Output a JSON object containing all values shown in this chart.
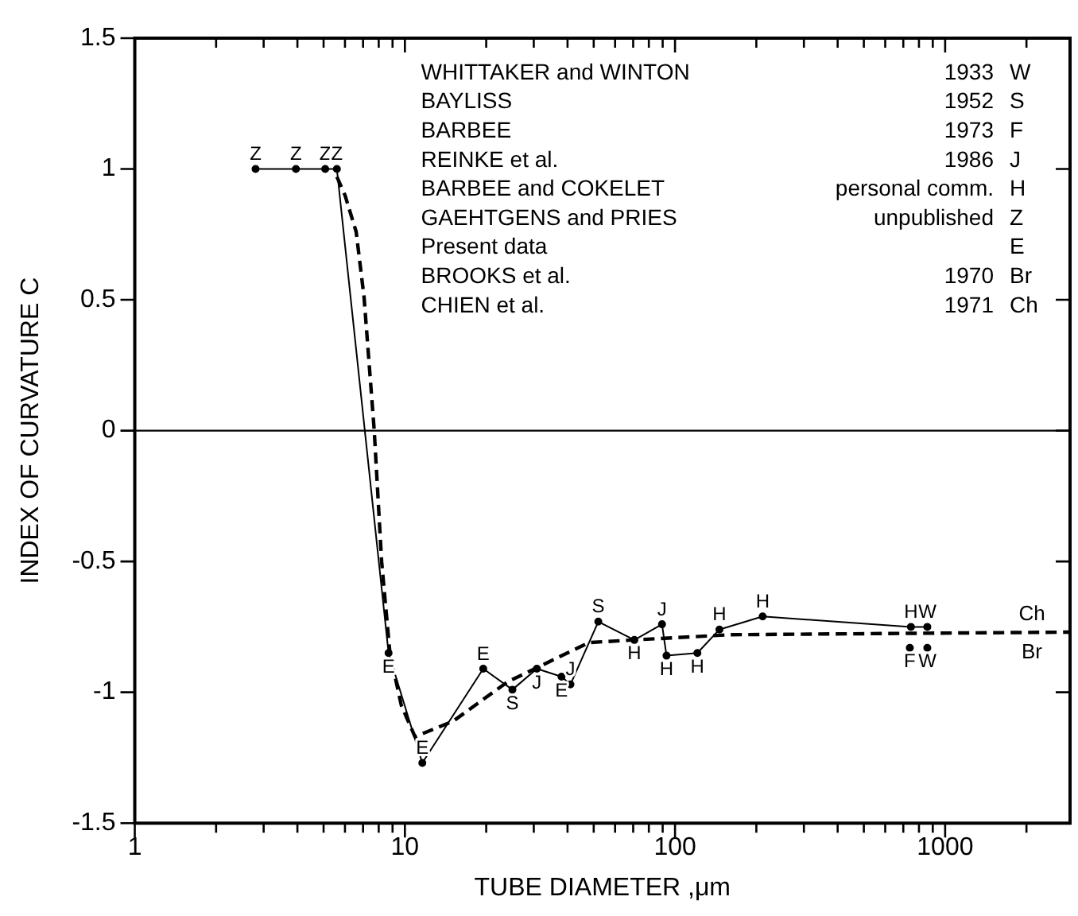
{
  "chart_data": {
    "type": "line",
    "xlabel": "TUBE DIAMETER ,μm",
    "ylabel": "INDEX OF CURVATURE C",
    "log": "x",
    "grid": false,
    "legend": false,
    "marker": "circle",
    "xlim": [
      1,
      2900
    ],
    "ylim": [
      -1.5,
      1.5
    ],
    "xticks": [
      1,
      {
        "value": 2,
        "label": null
      },
      {
        "value": 3,
        "label": null
      },
      {
        "value": 4,
        "label": null
      },
      {
        "value": 5,
        "label": null
      },
      {
        "value": 6,
        "label": null
      },
      {
        "value": 7,
        "label": null
      },
      {
        "value": 8,
        "label": null
      },
      {
        "value": 9,
        "label": null
      },
      10,
      {
        "value": 20,
        "label": null
      },
      {
        "value": 30,
        "label": null
      },
      {
        "value": 40,
        "label": null
      },
      {
        "value": 50,
        "label": null
      },
      {
        "value": 60,
        "label": null
      },
      {
        "value": 70,
        "label": null
      },
      {
        "value": 80,
        "label": null
      },
      {
        "value": 90,
        "label": null
      },
      100,
      {
        "value": 200,
        "label": null
      },
      {
        "value": 300,
        "label": null
      },
      {
        "value": 400,
        "label": null
      },
      {
        "value": 500,
        "label": null
      },
      {
        "value": 600,
        "label": null
      },
      {
        "value": 700,
        "label": null
      },
      {
        "value": 800,
        "label": null
      },
      {
        "value": 900,
        "label": null
      },
      1000,
      {
        "value": 2000,
        "label": null
      }
    ],
    "yticks": [
      -1.5,
      -1,
      -0.5,
      0,
      0.5,
      1,
      1.5
    ],
    "ref_lines": [
      {
        "axis": "y",
        "value": 0,
        "color": "#000000",
        "line_style": "solid"
      }
    ],
    "annotations": [
      "WHITTAKER and WINTON\t1933\tW",
      "BAYLISS\t1952\tS",
      "BARBEE\t1973\tF",
      "REINKE et al.\t1986\tJ",
      "BARBEE and COKELET\tpersonal comm.\tH",
      "GAEHTGENS and PRIES\tunpublished\tZ",
      "Present data\t\tE",
      "BROOKS et al.\t1970\tBr",
      "CHIEN et al.\t1971\tCh",
      "Ch",
      "Br"
    ],
    "series": [
      {
        "line_style": "solid",
        "color": "#000000",
        "x": [
          2.8,
          3.95,
          5.07,
          5.6,
          8.7,
          11.6,
          19.5,
          25,
          30.8,
          38,
          41,
          52,
          70.7,
          89.5,
          93,
          121,
          146,
          211,
          747,
          859
        ],
        "values": [
          1,
          1,
          1,
          1,
          -0.85,
          -1.27,
          -0.91,
          -0.99,
          -0.91,
          -0.94,
          -0.97,
          -0.73,
          -0.8,
          -0.74,
          -0.86,
          -0.85,
          -0.76,
          -0.71,
          -0.75,
          -0.75
        ],
        "value_labels": [
          "Z",
          "Z",
          "Z",
          "Z",
          "E",
          "E",
          "E",
          "S",
          "J",
          "E",
          "J",
          "S",
          "H",
          "J",
          "H",
          "H",
          "H",
          "H",
          "H",
          "W"
        ]
      },
      {
        "type": "scatter",
        "color": "#000000",
        "x": [
          740,
          859
        ],
        "values": [
          -0.83,
          -0.83
        ],
        "value_labels": [
          "F",
          "W"
        ]
      },
      {
        "type": "line",
        "marker": "none",
        "line_style": "dashed",
        "color": "#000000",
        "x": [
          5.6,
          6,
          6.6,
          7.06,
          7.7,
          8.2,
          8.8,
          9.7,
          10.9,
          15.1,
          24,
          48,
          70,
          160,
          2900
        ],
        "values": [
          0.97,
          0.9,
          0.76,
          0.51,
          0,
          -0.5,
          -0.85,
          -1.05,
          -1.17,
          -1.11,
          -0.96,
          -0.81,
          -0.8,
          -0.78,
          -0.77
        ]
      }
    ]
  }
}
